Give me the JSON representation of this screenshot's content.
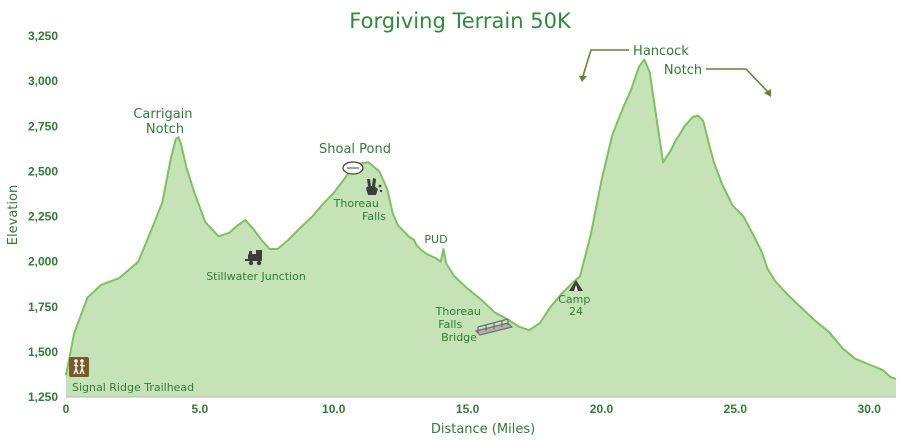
{
  "chart_data": {
    "type": "area",
    "title": "Forgiving Terrain 50K",
    "xlabel": "Distance (Miles)",
    "ylabel": "Elevation",
    "xlim": [
      0,
      31
    ],
    "ylim": [
      1250,
      3250
    ],
    "x_ticks": [
      0,
      5.0,
      10.0,
      15.0,
      20.0,
      25.0,
      30.0
    ],
    "x_tick_labels": [
      "0",
      "5.0",
      "10.0",
      "15.0",
      "20.0",
      "25.0",
      "30.0"
    ],
    "y_ticks": [
      1250,
      1500,
      1750,
      2000,
      2250,
      2500,
      2750,
      3000,
      3250
    ],
    "y_tick_labels": [
      "1,250",
      "1,500",
      "1,750",
      "2,000",
      "2,250",
      "2,500",
      "2,750",
      "3,000",
      "3,250"
    ],
    "grid": false,
    "colors": {
      "fill": "#c6e3b8",
      "line": "#7bc35c",
      "text": "#2e7d32",
      "title": "#2e8b3a",
      "icon": "#3f3f3f"
    },
    "series": [
      {
        "x": [
          0,
          0.3,
          0.8,
          1.3,
          2.0,
          2.7,
          3.2,
          3.6,
          3.9,
          4.1,
          4.2,
          4.3,
          4.5,
          4.8,
          5.2,
          5.7,
          6.1,
          6.4,
          6.7,
          7.0,
          7.3,
          7.6,
          7.9,
          8.3,
          8.7,
          9.2,
          9.6,
          10.0,
          10.4,
          10.8,
          11.3,
          11.7,
          12.0,
          12.2,
          12.4,
          12.6,
          12.8,
          13.0,
          13.1,
          13.3,
          13.5,
          13.8,
          14.0,
          14.1,
          14.2,
          14.5,
          15.0,
          15.5,
          16.0,
          16.5,
          16.9,
          17.3,
          17.7,
          18.1,
          18.5,
          18.9,
          19.2,
          19.6,
          20.0,
          20.4,
          20.8,
          21.1,
          21.4,
          21.6,
          21.8,
          22.0,
          22.3,
          22.6,
          22.8,
          22.9,
          23.1,
          23.4,
          23.6,
          23.8,
          24.0,
          24.2,
          24.5,
          24.9,
          25.3,
          25.7,
          26.0,
          26.2,
          26.5,
          27.0,
          27.5,
          28.0,
          28.5,
          29.0,
          29.5,
          30.0,
          30.5,
          30.8,
          31.0
        ],
        "values": [
          1370,
          1600,
          1800,
          1870,
          1910,
          2000,
          2180,
          2330,
          2560,
          2680,
          2690,
          2650,
          2520,
          2380,
          2220,
          2140,
          2160,
          2200,
          2230,
          2180,
          2120,
          2070,
          2070,
          2120,
          2180,
          2250,
          2320,
          2380,
          2460,
          2540,
          2550,
          2500,
          2400,
          2270,
          2200,
          2170,
          2140,
          2120,
          2090,
          2060,
          2040,
          2020,
          2000,
          2070,
          1990,
          1920,
          1850,
          1790,
          1720,
          1680,
          1640,
          1620,
          1660,
          1750,
          1820,
          1880,
          1920,
          2150,
          2450,
          2700,
          2850,
          2950,
          3080,
          3120,
          3050,
          2850,
          2550,
          2620,
          2680,
          2700,
          2750,
          2800,
          2810,
          2780,
          2660,
          2550,
          2430,
          2310,
          2250,
          2140,
          2050,
          1960,
          1890,
          1810,
          1740,
          1670,
          1610,
          1520,
          1460,
          1430,
          1400,
          1360,
          1350
        ]
      }
    ],
    "annotations": [
      {
        "text": [
          "Carrigain",
          "Notch"
        ],
        "x": 4.1,
        "y": 2690
      },
      {
        "text": [
          "Shoal Pond"
        ],
        "x": 10.9,
        "y": 2555
      },
      {
        "text": [
          "Thoreau",
          "Falls"
        ],
        "x": 12.0,
        "y": 2270
      },
      {
        "text": [
          "PUD"
        ],
        "x": 14.0,
        "y": 2070
      },
      {
        "text": [
          "Stillwater Junction"
        ],
        "x": 7.6,
        "y": 1970
      },
      {
        "text": [
          "Thoreau",
          "Falls",
          "Bridge"
        ],
        "x": 15.4,
        "y": 1620
      },
      {
        "text": [
          "Camp",
          "24"
        ],
        "x": 19.0,
        "y": 1880
      },
      {
        "text": [
          "Hancock",
          "Notch"
        ],
        "x": 21.7,
        "y": 3120
      },
      {
        "text": [
          "Signal Ridge Trailhead"
        ],
        "x": 0.2,
        "y": 1370
      }
    ]
  }
}
